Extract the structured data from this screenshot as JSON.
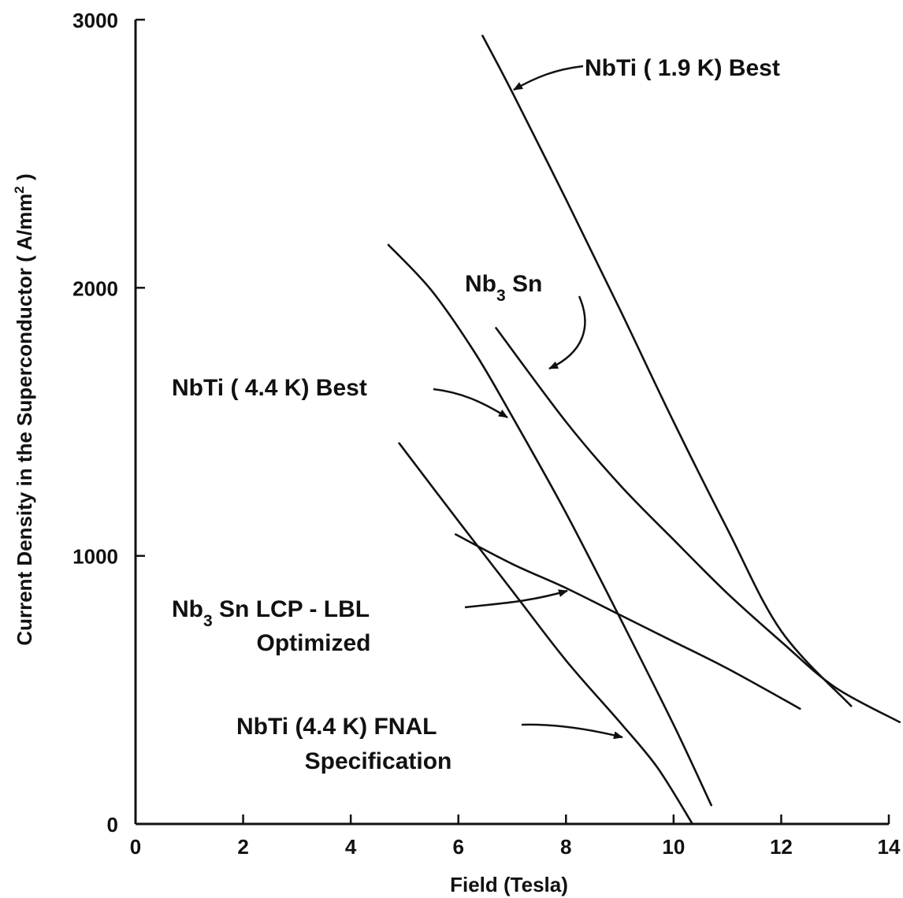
{
  "chart_data": {
    "type": "line",
    "title": "",
    "xlabel": "Field (Tesla)",
    "ylabel_text": "Current Density in the Superconductor ( A/mm",
    "ylabel_sup": "2",
    "ylabel_close": " )",
    "xlim": [
      0,
      14
    ],
    "ylim": [
      0,
      3000
    ],
    "xticks": [
      0,
      2,
      4,
      6,
      8,
      10,
      12,
      14
    ],
    "yticks": [
      0,
      1000,
      2000,
      3000
    ],
    "grid": false,
    "legend": "none",
    "series": [
      {
        "key": "nbti_19",
        "x": [
          6.45,
          7.0,
          8.0,
          9.0,
          10.0,
          11.0,
          12.0,
          13.3
        ],
        "y": [
          2940,
          2730,
          2330,
          1920,
          1500,
          1100,
          720,
          440
        ]
      },
      {
        "key": "nb3sn",
        "x": [
          6.7,
          8.0,
          9.0,
          10.0,
          11.0,
          12.0,
          13.0,
          14.2
        ],
        "y": [
          1850,
          1500,
          1265,
          1060,
          860,
          680,
          510,
          380
        ]
      },
      {
        "key": "nbti_44_best",
        "x": [
          4.7,
          5.5,
          6.3,
          7.0,
          8.0,
          9.0,
          10.0,
          10.7
        ],
        "y": [
          2160,
          1990,
          1760,
          1520,
          1160,
          770,
          370,
          70
        ]
      },
      {
        "key": "nb3sn_lcp",
        "x": [
          5.95,
          7.0,
          8.0,
          9.0,
          10.0,
          11.0,
          12.35
        ],
        "y": [
          1080,
          970,
          880,
          780,
          680,
          580,
          430
        ]
      },
      {
        "key": "nbti_fnal",
        "x": [
          4.9,
          6.0,
          7.0,
          8.0,
          9.0,
          9.7,
          10.35
        ],
        "y": [
          1420,
          1130,
          870,
          610,
          380,
          210,
          0
        ]
      }
    ],
    "annotations": [
      {
        "key": "nbti_19",
        "parts": [
          "NbTi  ( 1.9 K)  Best"
        ]
      },
      {
        "key": "nb3sn",
        "parts": [
          "Nb",
          "3",
          " Sn"
        ]
      },
      {
        "key": "nbti_44_best",
        "parts": [
          "NbTi  ( 4.4 K)  Best"
        ]
      },
      {
        "key": "nb3sn_lcp",
        "parts": [
          "Nb",
          "3",
          " Sn  LCP  -  LBL"
        ],
        "line2": "Optimized"
      },
      {
        "key": "nbti_fnal",
        "parts": [
          "NbTi (4.4  K)  FNAL"
        ],
        "line2": "Specification"
      }
    ]
  }
}
